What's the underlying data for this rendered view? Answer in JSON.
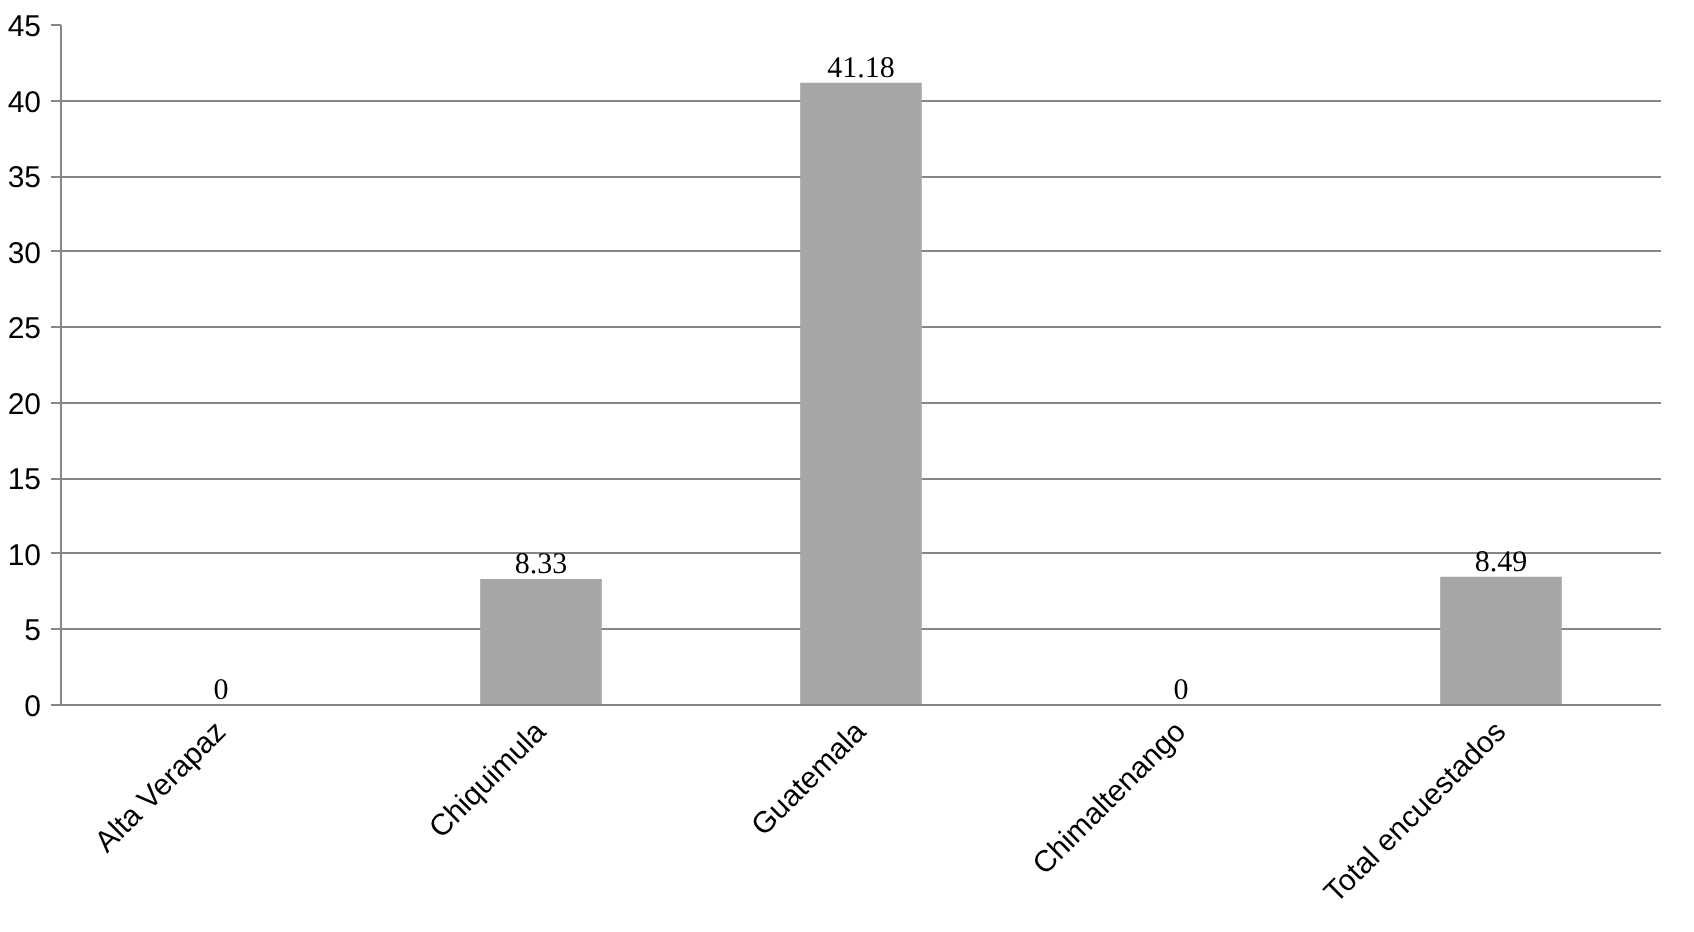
{
  "chart_data": {
    "type": "bar",
    "categories": [
      "Alta Verapaz",
      "Chiquimula",
      "Guatemala",
      "Chimaltenango",
      "Total encuestados"
    ],
    "values": [
      0,
      8.33,
      41.18,
      0,
      8.49
    ],
    "color": "#a6a6a6",
    "ylim": [
      0,
      45
    ],
    "yticks": [
      0,
      5,
      10,
      15,
      20,
      25,
      30,
      35,
      40,
      45
    ],
    "grid": "y",
    "data_labels": true
  }
}
